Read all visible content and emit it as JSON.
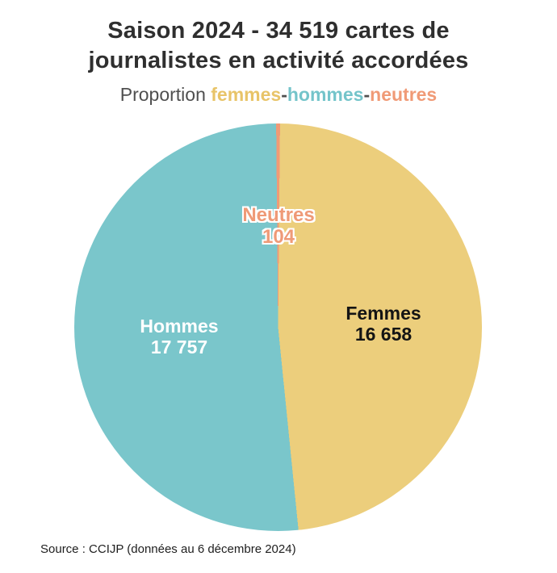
{
  "title": {
    "line1": "Saison 2024 - 34 519 cartes de",
    "line2": "journalistes en activité accordées"
  },
  "subtitle": {
    "prefix": "Proportion ",
    "separator": "-",
    "parts": [
      {
        "label": "femmes",
        "color": "#e8c468"
      },
      {
        "label": "hommes",
        "color": "#74c4ca"
      },
      {
        "label": "neutres",
        "color": "#f09a76"
      }
    ]
  },
  "chart_data": {
    "type": "pie",
    "title": "Saison 2024 - 34 519 cartes de journalistes en activité accordées",
    "subtitle": "Proportion femmes-hommes-neutres",
    "total": 34519,
    "start_angle_deg": 0,
    "direction": "clockwise",
    "slices": [
      {
        "label": "Neutres",
        "value": 104,
        "color": "#f09a76"
      },
      {
        "label": "Femmes",
        "value": 16658,
        "color": "#ecce7c"
      },
      {
        "label": "Hommes",
        "value": 17757,
        "color": "#7ac6cb"
      }
    ]
  },
  "labels": {
    "neutres": {
      "name": "Neutres",
      "value": "104",
      "color": "#ef9a77"
    },
    "hommes": {
      "name": "Hommes",
      "value": "17 757"
    },
    "femmes": {
      "name": "Femmes",
      "value": "16 658"
    }
  },
  "source": {
    "text": "Source : CCIJP (données au 6 décembre 2024)"
  }
}
